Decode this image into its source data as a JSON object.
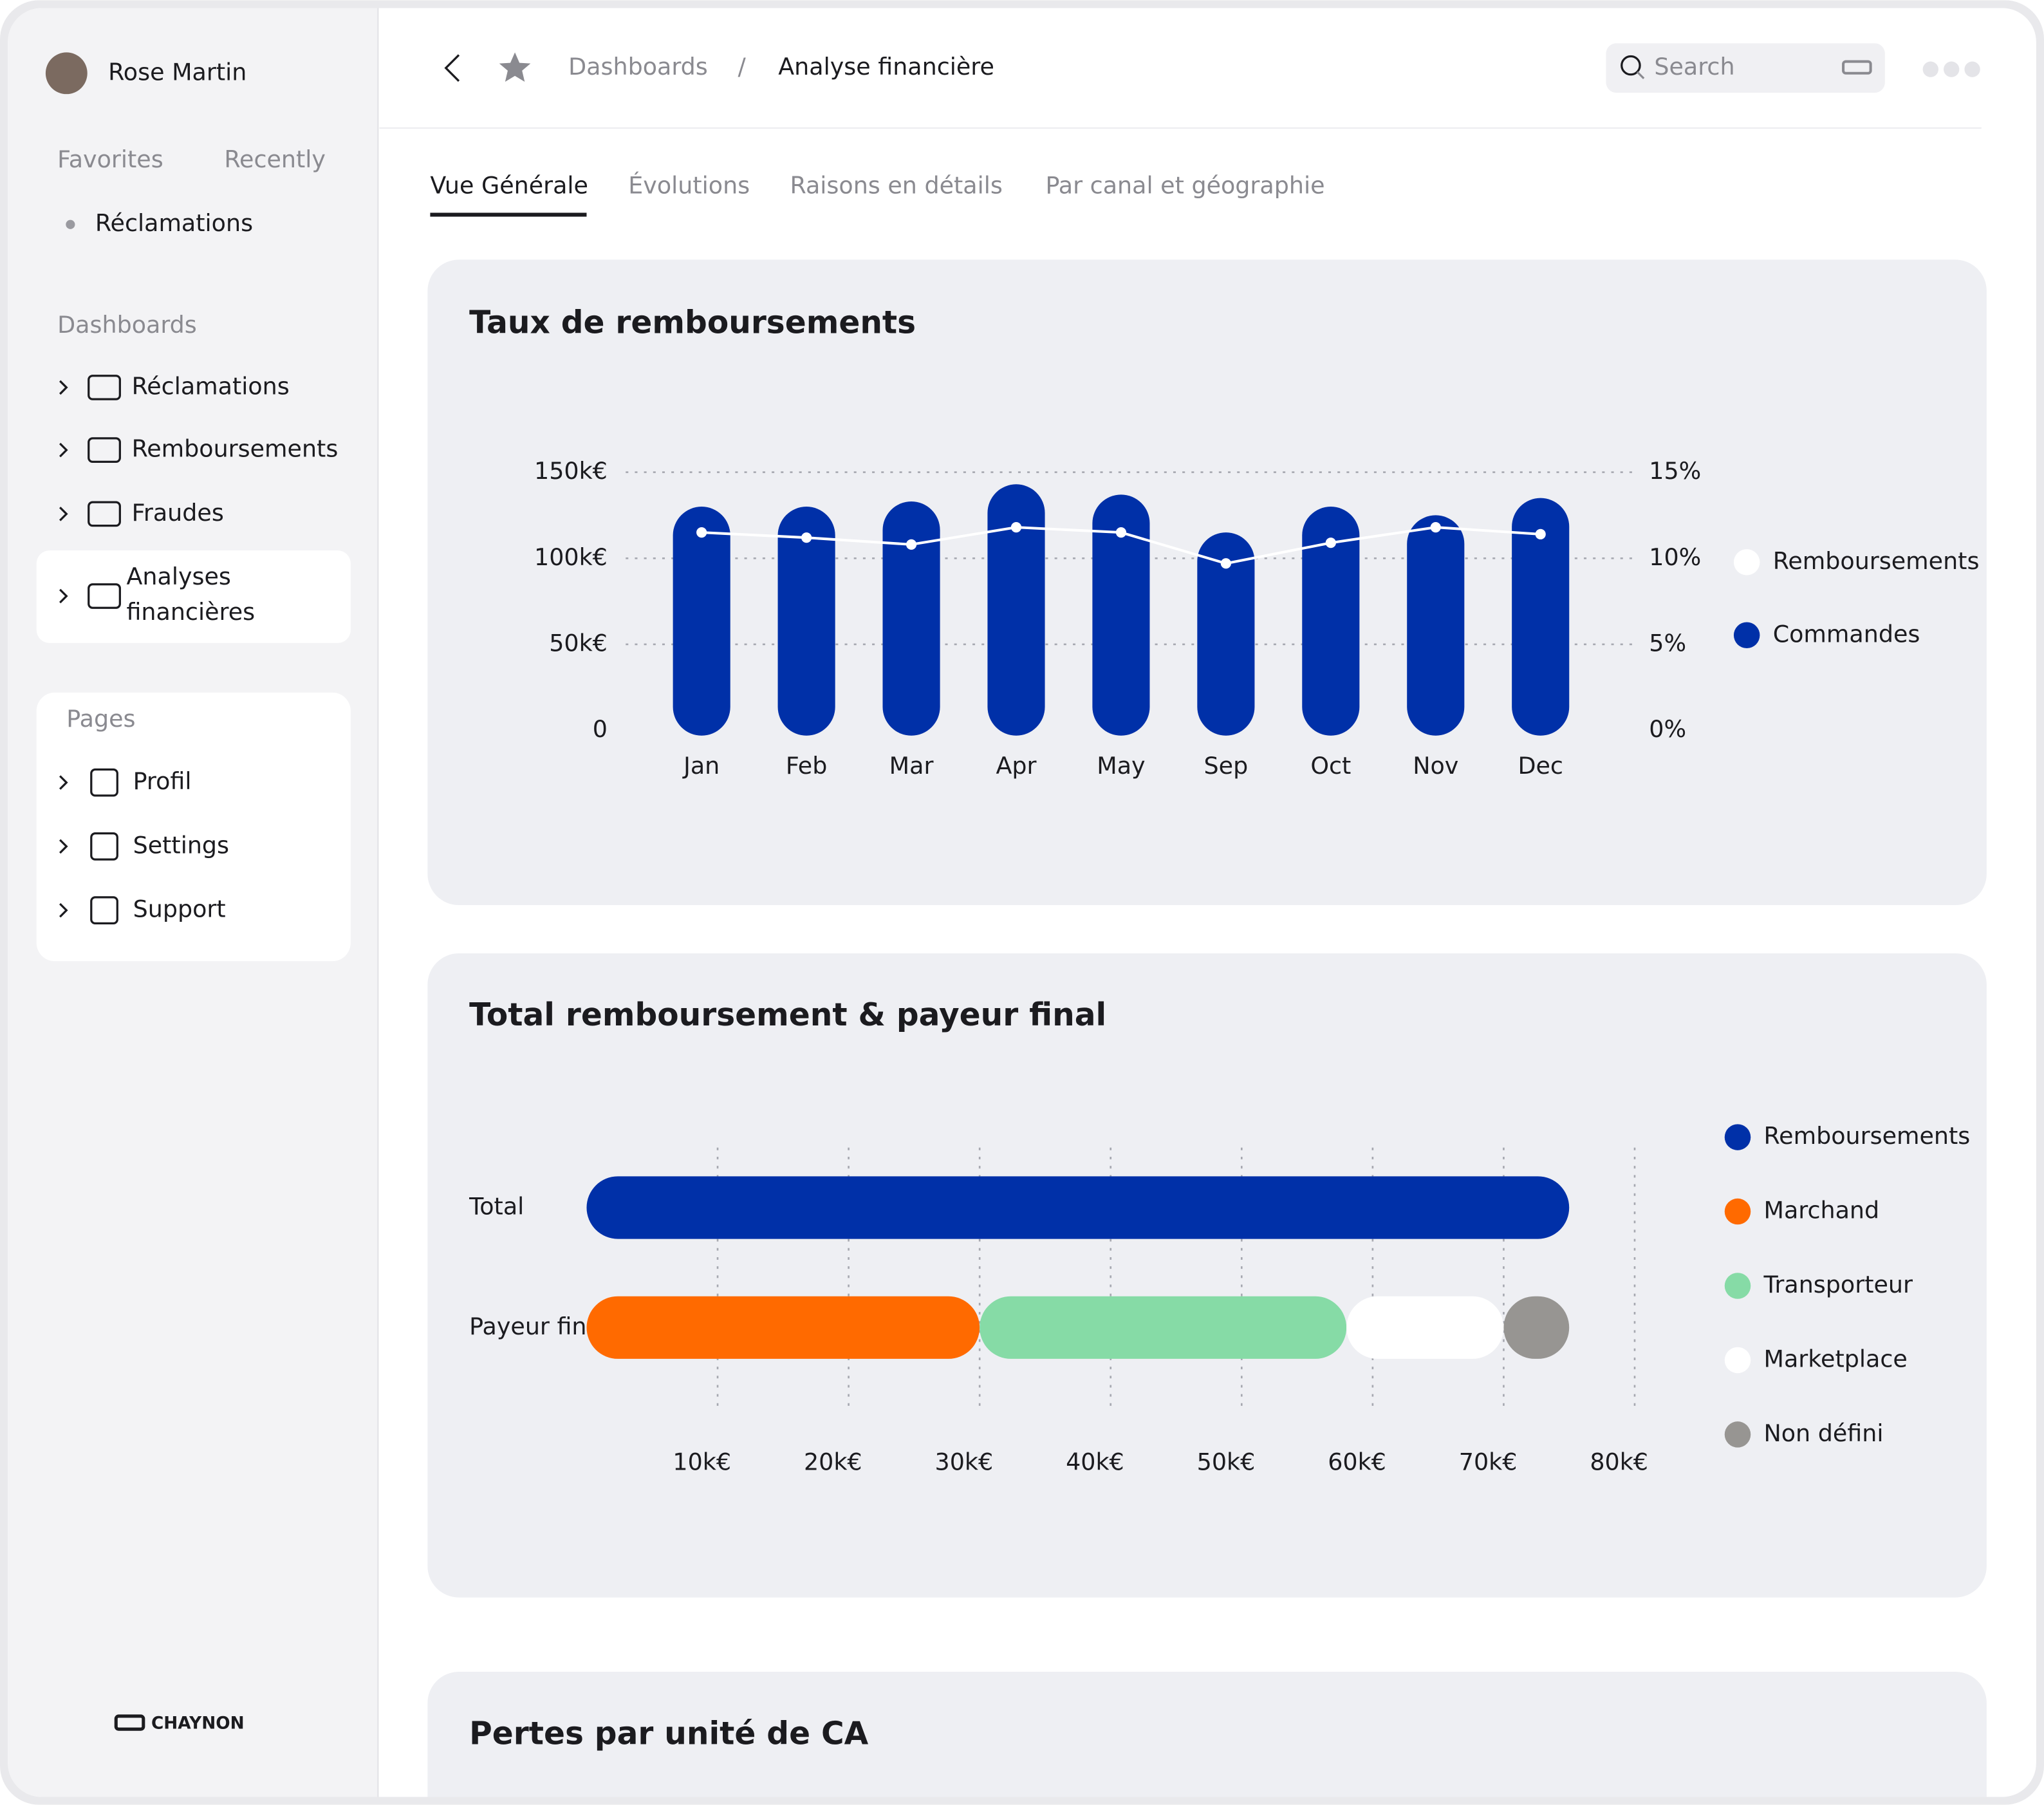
{
  "sidebar": {
    "user": "Rose Martin",
    "tabs": [
      "Favorites",
      "Recently"
    ],
    "favorites": [
      "Réclamations"
    ],
    "dashboards_heading": "Dashboards",
    "dashboards": [
      [
        "Réclamations"
      ],
      [
        "Remboursements"
      ],
      [
        "Fraudes"
      ],
      [
        "Analyses",
        "financières"
      ]
    ],
    "pages_heading": "Pages",
    "pages": [
      "Profil",
      "Settings",
      "Support"
    ],
    "brand": "CHAYNON"
  },
  "header": {
    "breadcrumb": [
      "Dashboards",
      "/",
      "Analyse financière"
    ],
    "search": "Search"
  },
  "tabs": [
    "Vue Générale",
    "Évolutions",
    "Raisons en détails",
    "Par canal et géographie"
  ],
  "next_section_title": "Pertes par unité de CA",
  "chart_data": [
    {
      "type": "bar_line",
      "title": "Taux de remboursements",
      "categories": [
        "Jan",
        "Feb",
        "Mar",
        "Apr",
        "May",
        "Sep",
        "Oct",
        "Nov",
        "Dec"
      ],
      "series": [
        {
          "name": "Remboursements",
          "color": "#ffffff",
          "axis": "y2",
          "values": [
            11.5,
            11.2,
            10.8,
            11.8,
            11.5,
            9.7,
            10.9,
            11.8,
            11.4
          ]
        },
        {
          "name": "Commandes",
          "color": "#0030a8",
          "values": [
            130000,
            130000,
            133000,
            143000,
            137000,
            115000,
            130000,
            125000,
            135000
          ]
        }
      ],
      "ylim": [
        0,
        150000
      ],
      "yticks": [
        0,
        {
          "value": 50000,
          "label": "50k€"
        },
        {
          "value": 100000,
          "label": "100k€"
        },
        {
          "value": 150000,
          "label": "150k€"
        }
      ],
      "y2lim": [
        0,
        15
      ],
      "y2ticks": [
        {
          "value": 0,
          "label": "0%"
        },
        {
          "value": 5,
          "label": "5%"
        },
        {
          "value": 10,
          "label": "10%"
        },
        {
          "value": 15,
          "label": "15%"
        }
      ],
      "grid": true
    },
    {
      "type": "stacked_hbar",
      "title": "Total remboursement & payeur final",
      "categories": [
        "Total",
        "Payeur final"
      ],
      "series": [
        {
          "name": "Remboursements",
          "color": "#0030a8",
          "values": [
            75000,
            null
          ]
        },
        {
          "name": "Marchand",
          "color": "#ff6a00",
          "values": [
            null,
            30000
          ]
        },
        {
          "name": "Transporteur",
          "color": "#86dba6",
          "values": [
            null,
            28000
          ]
        },
        {
          "name": "Marketplace",
          "color": "#ffffff",
          "values": [
            null,
            12000
          ]
        },
        {
          "name": "Non défini",
          "color": "#979592",
          "values": [
            null,
            5000
          ]
        }
      ],
      "xlim": [
        0,
        80000
      ],
      "xticks": [
        {
          "value": 10000,
          "label": "10k€"
        },
        {
          "value": 20000,
          "label": "20k€"
        },
        {
          "value": 30000,
          "label": "30k€"
        },
        {
          "value": 40000,
          "label": "40k€"
        },
        {
          "value": 50000,
          "label": "50k€"
        },
        {
          "value": 60000,
          "label": "60k€"
        },
        {
          "value": 70000,
          "label": "70k€"
        },
        {
          "value": 80000,
          "label": "80k€"
        }
      ],
      "grid": true
    }
  ]
}
